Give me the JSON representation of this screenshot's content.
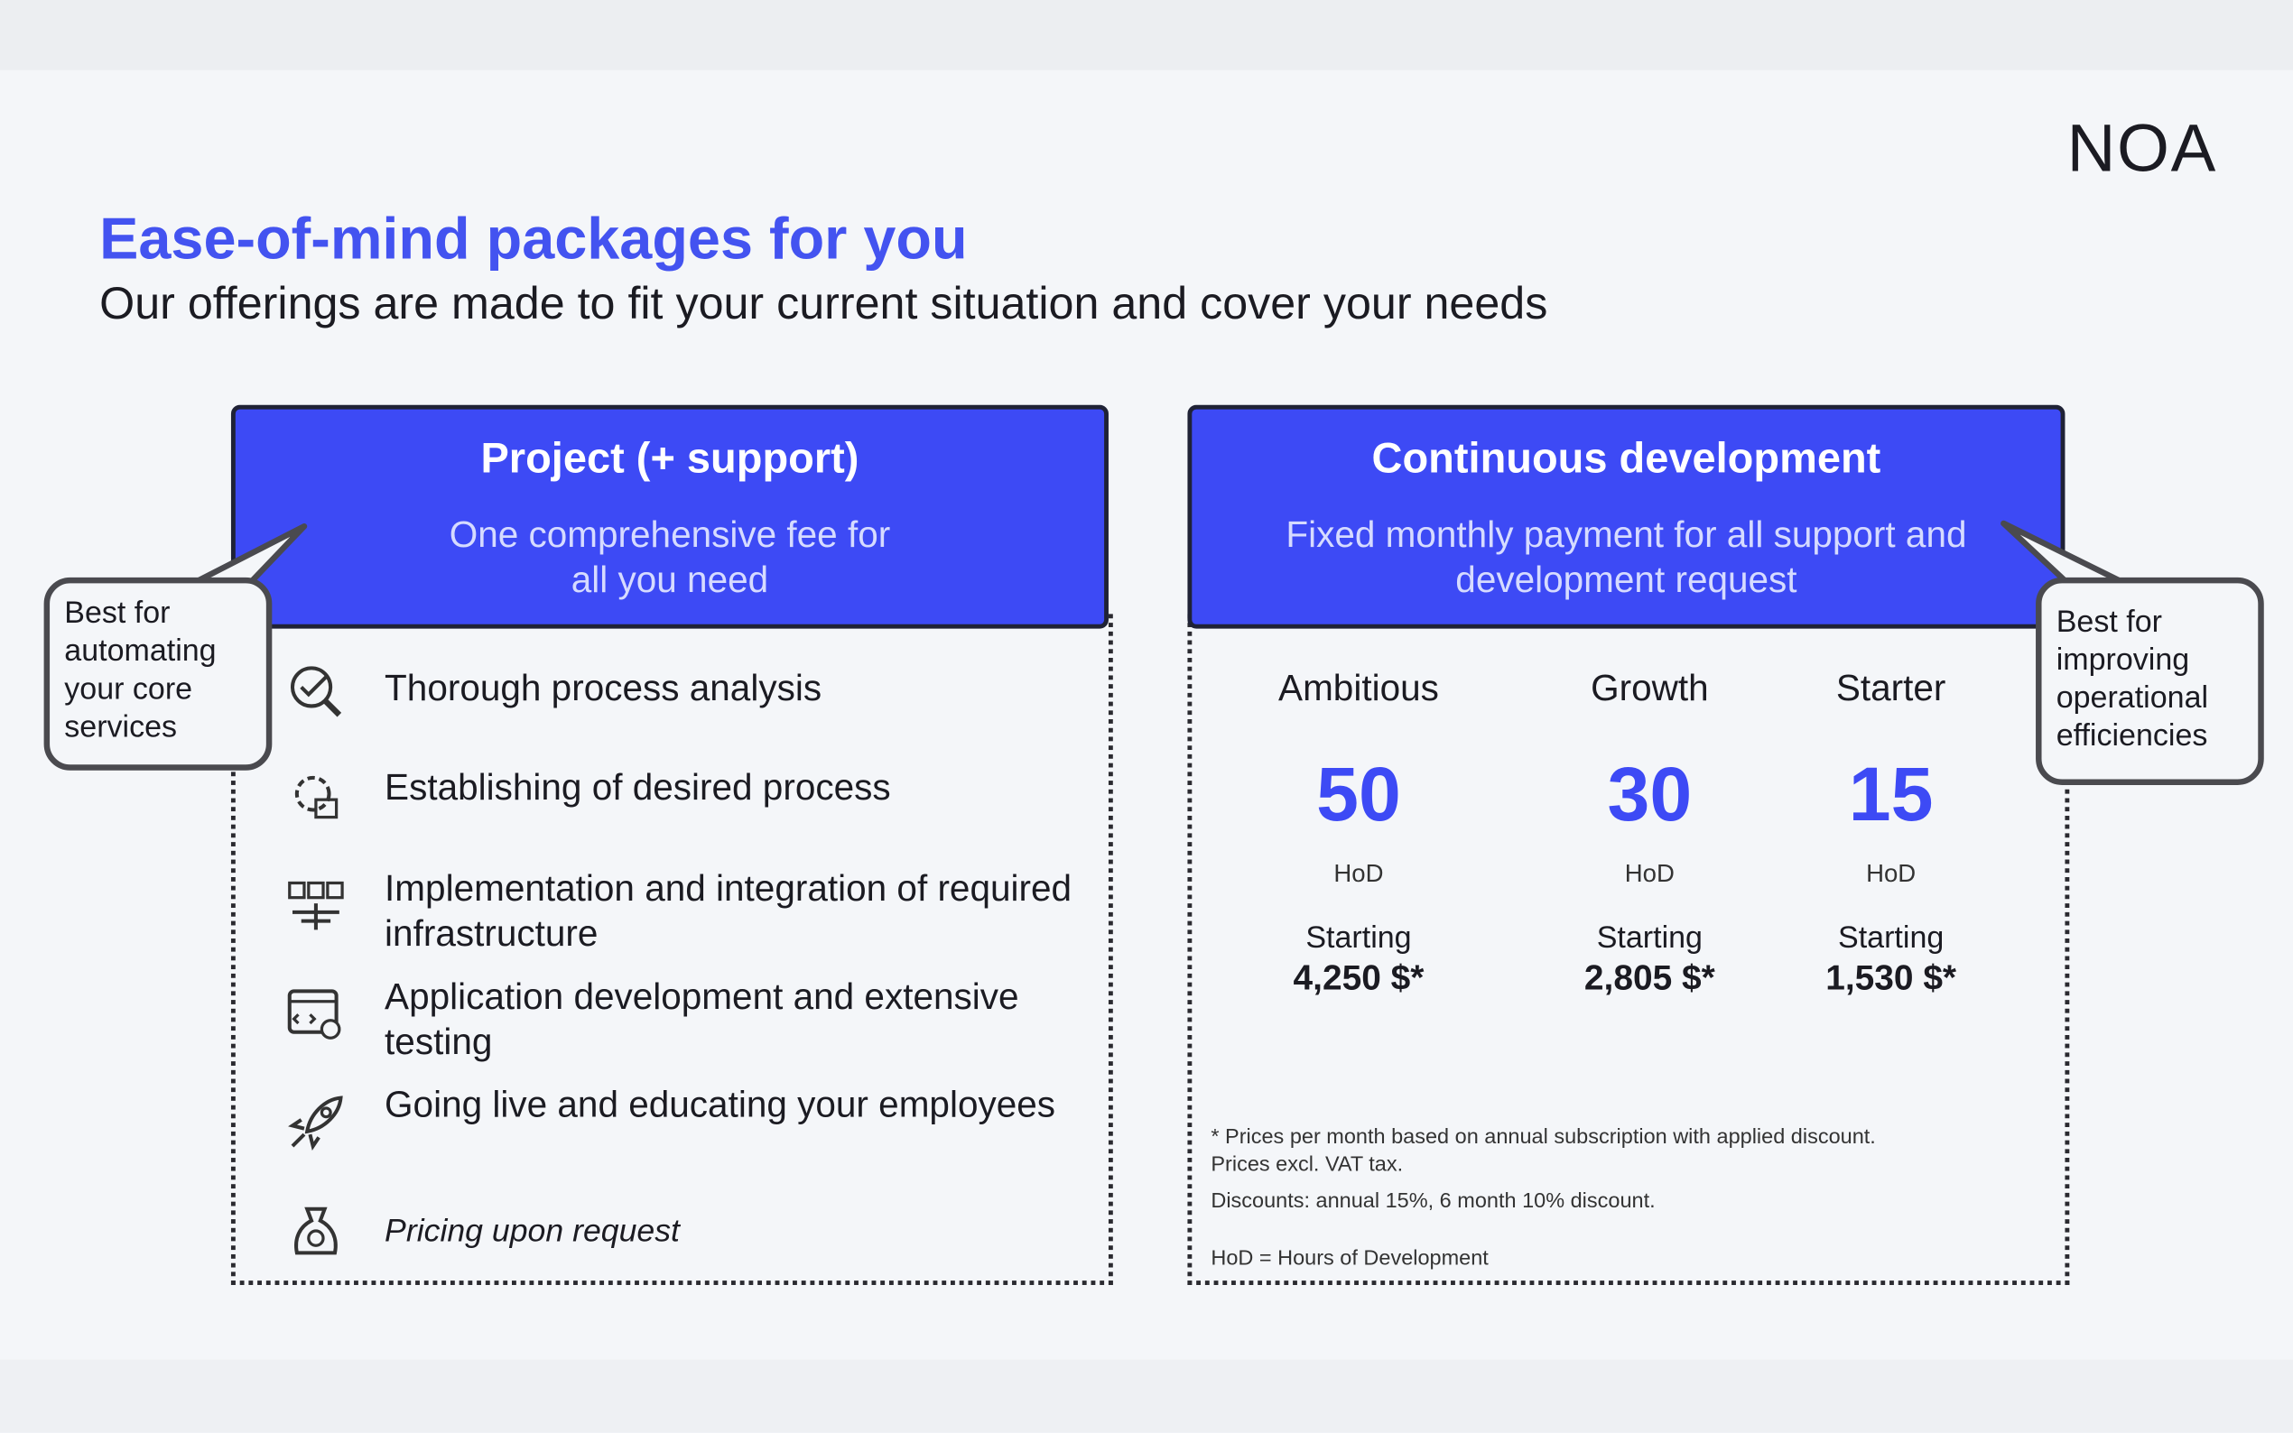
{
  "logo": "NOA",
  "header": {
    "title": "Ease-of-mind packages for you",
    "subtitle": "Our offerings are made to fit your current situation and cover your needs"
  },
  "packages": [
    {
      "title": "Project (+ support)",
      "description": "One comprehensive fee for all you need",
      "callout": "Best for automating your core services",
      "features": [
        "Thorough process analysis",
        "Establishing of desired process",
        "Implementation and integration of required infrastructure",
        "Application development and extensive testing",
        "Going live and educating your employees",
        "Pricing upon request"
      ]
    },
    {
      "title": "Continuous development",
      "description": "Fixed monthly payment for all support and development request",
      "callout": "Best for improving operational efficiencies",
      "tiers": [
        {
          "name": "Ambitious",
          "hours": "50",
          "unit": "HoD",
          "price_label": "Starting",
          "price": "4,250 $*"
        },
        {
          "name": "Growth",
          "hours": "30",
          "unit": "HoD",
          "price_label": "Starting",
          "price": "2,805 $*"
        },
        {
          "name": "Starter",
          "hours": "15",
          "unit": "HoD",
          "price_label": "Starting",
          "price": "1,530 $*"
        }
      ],
      "notes": [
        "* Prices per month based on annual subscription with applied discount.",
        "Prices excl. VAT tax.",
        "Discounts: annual 15%, 6 month 10% discount.",
        "HoD = Hours of Development"
      ]
    }
  ]
}
